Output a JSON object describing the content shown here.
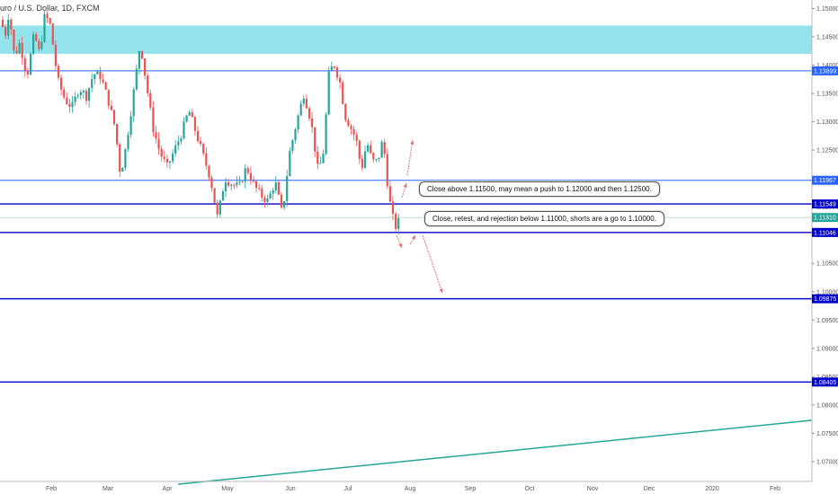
{
  "header": {
    "symbol_title": "uro / U.S. Dollar, 1D, FXCM"
  },
  "chart_data": {
    "type": "candlestick",
    "title": "uro / U.S. Dollar, 1D, FXCM",
    "y_range": [
      1.0665,
      1.1515
    ],
    "y_ticks": [
      "1.15000",
      "1.14500",
      "1.14000",
      "1.13500",
      "1.13000",
      "1.12500",
      "1.12000",
      "1.11500",
      "1.11000",
      "1.10500",
      "1.10000",
      "1.09500",
      "1.09000",
      "1.08500",
      "1.08000",
      "1.07500",
      "1.07000"
    ],
    "x_months": [
      "Feb",
      "Mar",
      "Apr",
      "May",
      "Jun",
      "Jul",
      "Aug",
      "Sep",
      "Oct",
      "Nov",
      "Dec",
      "2020",
      "Feb"
    ],
    "current_price": {
      "value": 1.1131,
      "label": "1.11310",
      "color": "#26a69a"
    },
    "zone": {
      "from": 1.142,
      "to": 1.147,
      "color": "#80deea"
    },
    "levels": [
      {
        "value": 1.13899,
        "label": "1.13899",
        "color": "#2962ff"
      },
      {
        "value": 1.11967,
        "label": "1.11967",
        "color": "#2962ff"
      },
      {
        "value": 1.11549,
        "label": "1.11549",
        "color": "#0000cc"
      },
      {
        "value": 1.11046,
        "label": "1.11046",
        "color": "#0000cc"
      },
      {
        "value": 1.09875,
        "label": "1.09875",
        "color": "#0000cc"
      },
      {
        "value": 1.08405,
        "label": "1.08405",
        "color": "#0000cc"
      }
    ],
    "trendline": {
      "from_y": 1.066,
      "to_y": 1.0773,
      "color": "#26a69a"
    },
    "annotations": [
      "Close above 1.11500, may mean a push to 1.12000 and then 1.12500.",
      "Close, retest, and rejection below 1.11000, shorts are a go to 1.10000."
    ],
    "up_color": "#26a69a",
    "down_color": "#ef5350"
  }
}
